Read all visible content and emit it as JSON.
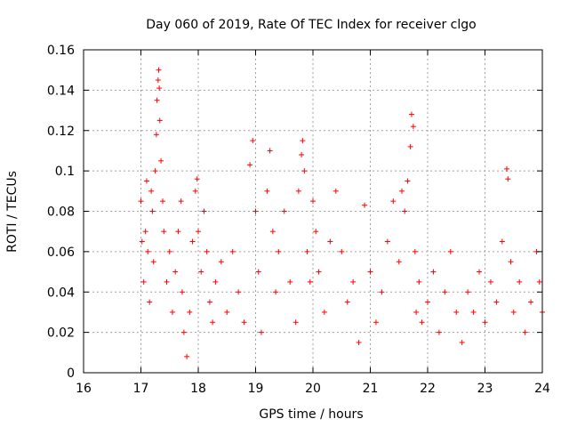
{
  "chart_data": {
    "type": "scatter",
    "title": "Day 060 of 2019, Rate Of TEC Index for receiver clgo",
    "xlabel": "GPS time / hours",
    "ylabel": "ROTI / TECUs",
    "xlim": [
      16,
      24
    ],
    "ylim": [
      0,
      0.16
    ],
    "x_ticks": [
      "16",
      "17",
      "18",
      "19",
      "20",
      "21",
      "22",
      "23",
      "24"
    ],
    "y_ticks": [
      "0",
      "0.02",
      "0.04",
      "0.06",
      "0.08",
      "0.1",
      "0.12",
      "0.14",
      "0.16"
    ],
    "grid": true,
    "marker": "+",
    "color": "#ff0000",
    "series": [
      {
        "name": "ROTI",
        "points": [
          [
            17.0,
            0.085
          ],
          [
            17.02,
            0.065
          ],
          [
            17.05,
            0.045
          ],
          [
            17.08,
            0.07
          ],
          [
            17.1,
            0.095
          ],
          [
            17.12,
            0.06
          ],
          [
            17.15,
            0.035
          ],
          [
            17.18,
            0.09
          ],
          [
            17.2,
            0.08
          ],
          [
            17.22,
            0.055
          ],
          [
            17.25,
            0.1
          ],
          [
            17.27,
            0.118
          ],
          [
            17.28,
            0.135
          ],
          [
            17.3,
            0.145
          ],
          [
            17.31,
            0.15
          ],
          [
            17.32,
            0.141
          ],
          [
            17.33,
            0.125
          ],
          [
            17.35,
            0.105
          ],
          [
            17.38,
            0.085
          ],
          [
            17.4,
            0.07
          ],
          [
            17.45,
            0.045
          ],
          [
            17.5,
            0.06
          ],
          [
            17.55,
            0.03
          ],
          [
            17.6,
            0.05
          ],
          [
            17.65,
            0.07
          ],
          [
            17.7,
            0.085
          ],
          [
            17.72,
            0.04
          ],
          [
            17.75,
            0.02
          ],
          [
            17.8,
            0.008
          ],
          [
            17.85,
            0.03
          ],
          [
            17.9,
            0.065
          ],
          [
            17.95,
            0.09
          ],
          [
            17.98,
            0.096
          ],
          [
            18.0,
            0.07
          ],
          [
            18.05,
            0.05
          ],
          [
            18.1,
            0.08
          ],
          [
            18.15,
            0.06
          ],
          [
            18.2,
            0.035
          ],
          [
            18.25,
            0.025
          ],
          [
            18.3,
            0.045
          ],
          [
            18.4,
            0.055
          ],
          [
            18.5,
            0.03
          ],
          [
            18.6,
            0.06
          ],
          [
            18.7,
            0.04
          ],
          [
            18.8,
            0.025
          ],
          [
            18.9,
            0.103
          ],
          [
            18.95,
            0.115
          ],
          [
            19.0,
            0.08
          ],
          [
            19.05,
            0.05
          ],
          [
            19.1,
            0.02
          ],
          [
            19.2,
            0.09
          ],
          [
            19.25,
            0.11
          ],
          [
            19.3,
            0.07
          ],
          [
            19.35,
            0.04
          ],
          [
            19.4,
            0.06
          ],
          [
            19.5,
            0.08
          ],
          [
            19.6,
            0.045
          ],
          [
            19.7,
            0.025
          ],
          [
            19.75,
            0.09
          ],
          [
            19.8,
            0.108
          ],
          [
            19.82,
            0.115
          ],
          [
            19.85,
            0.1
          ],
          [
            19.9,
            0.06
          ],
          [
            19.95,
            0.045
          ],
          [
            20.0,
            0.085
          ],
          [
            20.05,
            0.07
          ],
          [
            20.1,
            0.05
          ],
          [
            20.2,
            0.03
          ],
          [
            20.3,
            0.065
          ],
          [
            20.4,
            0.09
          ],
          [
            20.5,
            0.06
          ],
          [
            20.6,
            0.035
          ],
          [
            20.7,
            0.045
          ],
          [
            20.8,
            0.015
          ],
          [
            20.9,
            0.083
          ],
          [
            21.0,
            0.05
          ],
          [
            21.1,
            0.025
          ],
          [
            21.2,
            0.04
          ],
          [
            21.3,
            0.065
          ],
          [
            21.4,
            0.085
          ],
          [
            21.5,
            0.055
          ],
          [
            21.55,
            0.09
          ],
          [
            21.6,
            0.08
          ],
          [
            21.65,
            0.095
          ],
          [
            21.7,
            0.112
          ],
          [
            21.72,
            0.128
          ],
          [
            21.75,
            0.122
          ],
          [
            21.78,
            0.06
          ],
          [
            21.8,
            0.03
          ],
          [
            21.85,
            0.045
          ],
          [
            21.9,
            0.025
          ],
          [
            22.0,
            0.035
          ],
          [
            22.1,
            0.05
          ],
          [
            22.2,
            0.02
          ],
          [
            22.3,
            0.04
          ],
          [
            22.4,
            0.06
          ],
          [
            22.5,
            0.03
          ],
          [
            22.6,
            0.015
          ],
          [
            22.7,
            0.04
          ],
          [
            22.8,
            0.03
          ],
          [
            22.9,
            0.05
          ],
          [
            23.0,
            0.025
          ],
          [
            23.1,
            0.045
          ],
          [
            23.2,
            0.035
          ],
          [
            23.3,
            0.065
          ],
          [
            23.38,
            0.101
          ],
          [
            23.4,
            0.096
          ],
          [
            23.45,
            0.055
          ],
          [
            23.5,
            0.03
          ],
          [
            23.6,
            0.045
          ],
          [
            23.7,
            0.02
          ],
          [
            23.8,
            0.035
          ],
          [
            23.9,
            0.06
          ],
          [
            23.95,
            0.045
          ],
          [
            24.0,
            0.03
          ]
        ]
      }
    ]
  }
}
